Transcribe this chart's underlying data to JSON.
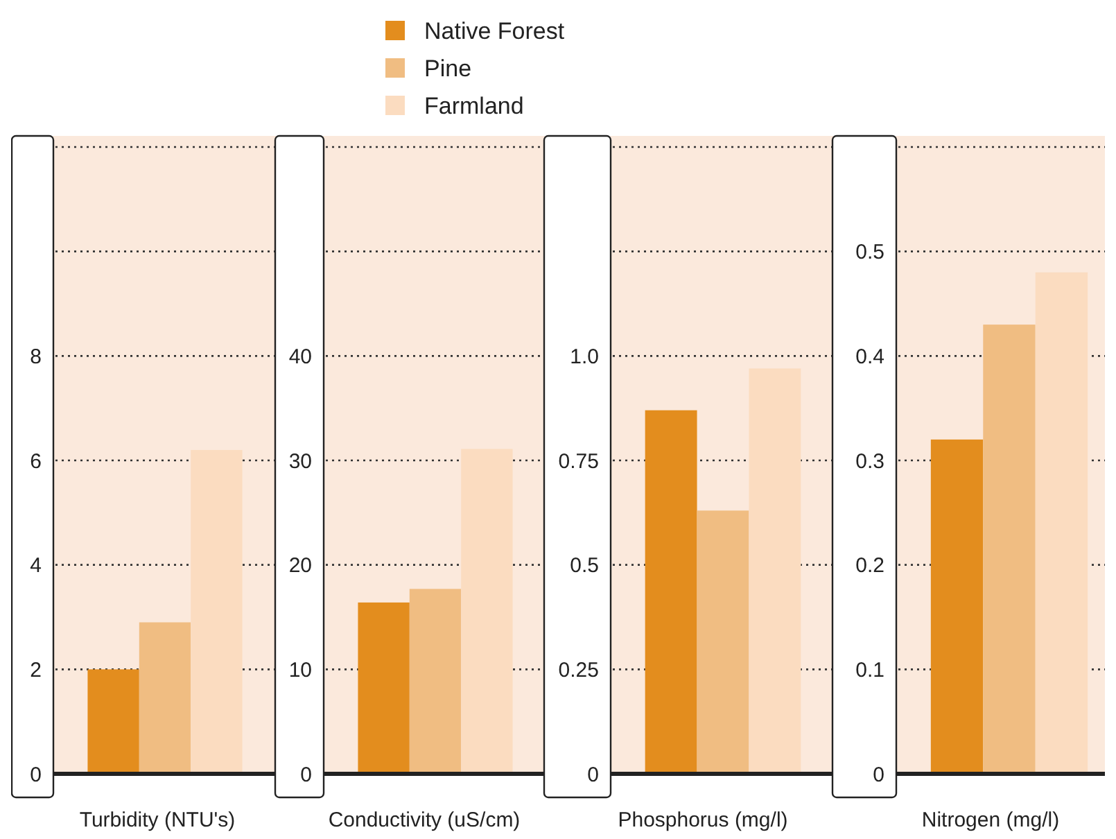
{
  "chart_data": [
    {
      "type": "bar",
      "xlabel": "Turbidity (NTU's)",
      "categories": [
        null
      ],
      "legend": "top",
      "grid": "y",
      "ylim": [
        0,
        12
      ],
      "yticks": [
        0,
        2,
        4,
        6,
        8,
        {
          "value": 10,
          "label": null
        },
        {
          "value": 12,
          "label": null
        }
      ],
      "series": [
        {
          "name": "Native Forest",
          "color": "#e38d1e",
          "values": [
            2.0
          ]
        },
        {
          "name": "Pine",
          "color": "#f0bd82",
          "values": [
            2.9
          ]
        },
        {
          "name": "Farmland",
          "color": "#fbdcc0",
          "values": [
            6.2
          ]
        }
      ]
    },
    {
      "type": "bar",
      "xlabel": "Conductivity (uS/cm)",
      "categories": [
        null
      ],
      "grid": "y",
      "ylim": [
        0,
        60
      ],
      "yticks": [
        0,
        10,
        20,
        30,
        40,
        {
          "value": 50,
          "label": null
        },
        {
          "value": 60,
          "label": null
        }
      ],
      "series": [
        {
          "color": "#e38d1e",
          "values": [
            16.4
          ]
        },
        {
          "color": "#f0bd82",
          "values": [
            17.7
          ]
        },
        {
          "color": "#fbdcc0",
          "values": [
            31.1
          ]
        }
      ]
    },
    {
      "type": "bar",
      "xlabel": "Phosphorus (mg/l)",
      "categories": [
        null
      ],
      "grid": "y",
      "ylim": [
        0,
        1.5
      ],
      "yticks": [
        0,
        0.25,
        0.5,
        0.75,
        {
          "value": 1,
          "label": "1.0"
        },
        {
          "value": 1.25,
          "label": null
        },
        {
          "value": 1.5,
          "label": null
        }
      ],
      "series": [
        {
          "color": "#e38d1e",
          "values": [
            0.87
          ]
        },
        {
          "color": "#f0bd82",
          "values": [
            0.63
          ]
        },
        {
          "color": "#fbdcc0",
          "values": [
            0.97
          ]
        }
      ]
    },
    {
      "type": "bar",
      "xlabel": "Nitrogen (mg/l)",
      "categories": [
        null
      ],
      "grid": "y",
      "ylim": [
        0,
        0.6
      ],
      "yticks": [
        0,
        0.1,
        0.2,
        0.3,
        0.4,
        0.5,
        {
          "value": 0.6,
          "label": null
        }
      ],
      "series": [
        {
          "color": "#e38d1e",
          "values": [
            0.32
          ]
        },
        {
          "color": "#f0bd82",
          "values": [
            0.43
          ]
        },
        {
          "color": "#fbdcc0",
          "values": [
            0.48
          ]
        }
      ]
    }
  ]
}
